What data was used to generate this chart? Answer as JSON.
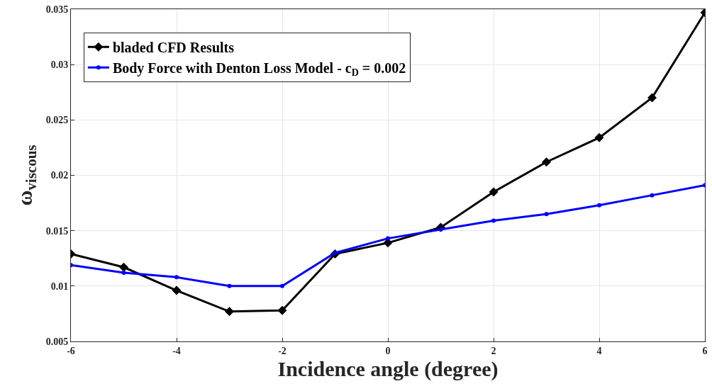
{
  "chart_data": {
    "type": "line",
    "xlabel": "Incidence angle (degree)",
    "ylabel": "ω$_{viscous}$",
    "x": [
      -6,
      -5,
      -4,
      -3,
      -2,
      -1,
      0,
      1,
      2,
      3,
      4,
      5,
      6
    ],
    "series": [
      {
        "name": "bladed CFD Results",
        "color": "#000000",
        "marker": "diamond",
        "values": [
          0.0129,
          0.0117,
          0.0096,
          0.0077,
          0.0078,
          0.0129,
          0.0139,
          0.0153,
          0.0185,
          0.0212,
          0.0234,
          0.027,
          0.0347
        ]
      },
      {
        "name": "Body Force with Denton Loss Model - c$_{D}$ = 0.002",
        "color": "#0000ff",
        "marker": "circle",
        "values": [
          0.0119,
          0.0112,
          0.0108,
          0.01,
          0.01,
          0.013,
          0.0143,
          0.0151,
          0.0159,
          0.0165,
          0.0173,
          0.0182,
          0.0191
        ]
      }
    ],
    "xlim": [
      -6,
      6
    ],
    "xticks": [
      -6,
      -4,
      -2,
      0,
      2,
      4,
      6
    ],
    "ylim": [
      0.005,
      0.035
    ],
    "yticks": [
      0.005,
      0.01,
      0.015,
      0.02,
      0.025,
      0.03,
      0.035
    ],
    "grid": true,
    "legend": "top left",
    "line_style": "solid"
  }
}
